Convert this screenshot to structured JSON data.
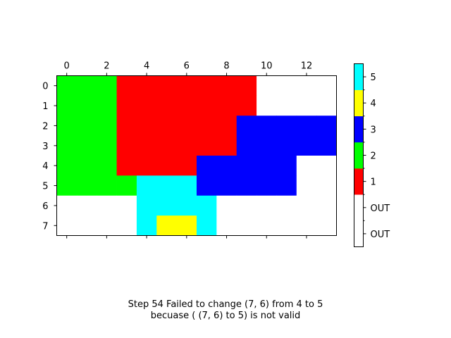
{
  "chart_data": {
    "type": "heatmap",
    "x_ticks": [
      0,
      2,
      4,
      6,
      8,
      10,
      12
    ],
    "y_ticks": [
      0,
      1,
      2,
      3,
      4,
      5,
      6,
      7
    ],
    "xlim": [
      -0.5,
      13.5
    ],
    "ylim": [
      7.5,
      -0.5
    ],
    "x_axis_position": "top",
    "grid": false,
    "grid_values": [
      [
        2,
        2,
        2,
        1,
        1,
        1,
        1,
        1,
        1,
        1,
        0,
        0,
        0,
        0
      ],
      [
        2,
        2,
        2,
        1,
        1,
        1,
        1,
        1,
        1,
        1,
        0,
        0,
        0,
        0
      ],
      [
        2,
        2,
        2,
        1,
        1,
        1,
        1,
        1,
        1,
        3,
        3,
        3,
        3,
        3
      ],
      [
        2,
        2,
        2,
        1,
        1,
        1,
        1,
        1,
        1,
        3,
        3,
        3,
        3,
        3
      ],
      [
        2,
        2,
        2,
        1,
        1,
        1,
        1,
        3,
        3,
        3,
        3,
        3,
        0,
        0
      ],
      [
        2,
        2,
        2,
        2,
        5,
        5,
        5,
        3,
        3,
        3,
        3,
        3,
        0,
        0
      ],
      [
        0,
        0,
        0,
        0,
        5,
        5,
        5,
        5,
        0,
        0,
        0,
        0,
        0,
        0
      ],
      [
        0,
        0,
        0,
        0,
        5,
        4,
        4,
        5,
        0,
        0,
        0,
        0,
        0,
        0
      ]
    ],
    "colorbar": {
      "position": "right",
      "bands": [
        {
          "value": -1,
          "color": "#ffffff"
        },
        {
          "value": 0,
          "color": "#ffffff"
        },
        {
          "value": 1,
          "color": "#ff0000"
        },
        {
          "value": 2,
          "color": "#00ff00"
        },
        {
          "value": 3,
          "color": "#0000ff"
        },
        {
          "value": 4,
          "color": "#ffff00"
        },
        {
          "value": 5,
          "color": "#00ffff"
        }
      ],
      "tick_labels": [
        "OUT",
        "OUT",
        "1",
        "2",
        "3",
        "4",
        "5"
      ]
    },
    "colors": {
      "0": "#ffffff",
      "1": "#ff0000",
      "2": "#00ff00",
      "3": "#0000ff",
      "4": "#ffff00",
      "5": "#00ffff"
    }
  },
  "caption": {
    "line1": "Step 54 Failed to change (7, 6) from 4 to 5",
    "line2": "becuase ( (7, 6) to 5) is not valid"
  }
}
